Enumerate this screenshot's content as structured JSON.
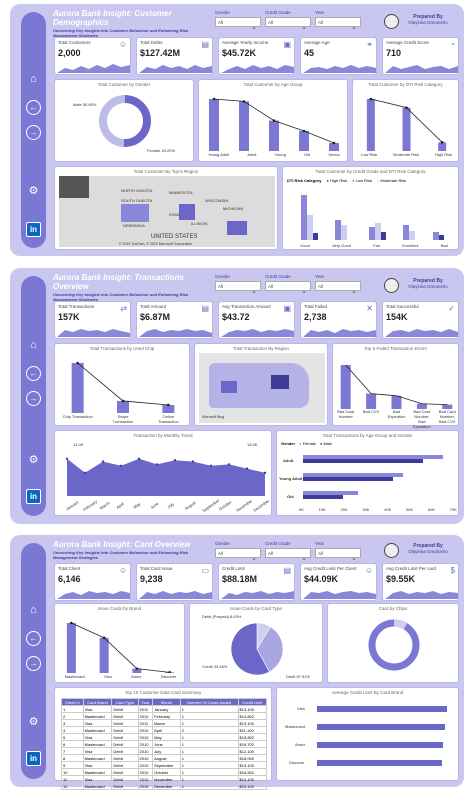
{
  "panel1": {
    "title": "Aurora Bank Insight: Customer Demographics",
    "subtitle": "Uncovering Key Insights into Customer Behaviour and Enhancing Risk Management Strategies",
    "slicers": [
      {
        "label": "Gender",
        "value": "All"
      },
      {
        "label": "Credit Grade",
        "value": "All"
      },
      {
        "label": "Year",
        "value": "All"
      }
    ],
    "prepared_by": "Prepared By",
    "author": "Olayinka Omotosho",
    "kpis": [
      {
        "label": "Total Customers",
        "value": "2,000"
      },
      {
        "label": "Total Debts",
        "value": "$127.42M"
      },
      {
        "label": "Average Yearly Income",
        "value": "$45.72K"
      },
      {
        "label": "Average Age",
        "value": "45"
      },
      {
        "label": "Average Credit Score",
        "value": "710"
      }
    ],
    "donut_title": "Total Customer by Gender",
    "donut_labels": [
      "Male 50.80%",
      "Female 49.20%"
    ],
    "age_title": "Total Customer by Age Group",
    "age_cats": [
      "Young Adult",
      "Adult",
      "Young",
      "Old",
      "Senior"
    ],
    "risk_title": "Total Customer by DTI Risk Category",
    "risk_cats": [
      "Low Risk",
      "Moderate Risk",
      "High Risk"
    ],
    "map_title": "Total Customer By Top 5 Region",
    "map_credit": "© 2023 TomTom, © 2023 Microsoft Corporation",
    "map_labels": [
      "UNITED STATES",
      "NORTH DAKOTA",
      "SOUTH DAKOTA",
      "NEBRASKA",
      "MINNESOTA",
      "IOWA",
      "WISCONSIN",
      "MICHIGAN",
      "ILLINOIS"
    ],
    "grade_title": "Total Customer by Credit Grade and DTI Risk Category",
    "grade_legend": [
      "DTI Risk Category",
      "High Risk",
      "Low Risk",
      "Moderate Risk"
    ],
    "grade_cats": [
      "Good",
      "Very Good",
      "Fair",
      "Excellent",
      "Bad"
    ]
  },
  "panel2": {
    "title": "Aurora Bank Insight: Transactions Overview",
    "subtitle": "Uncovering Key Insights into Customer Behaviour and Enhancing Risk Management Strategies",
    "slicers": [
      {
        "label": "Gender",
        "value": "All"
      },
      {
        "label": "Credit Grade",
        "value": "All"
      },
      {
        "label": "Year",
        "value": "All"
      }
    ],
    "prepared_by": "Prepared By",
    "author": "Olayinka Omotosho",
    "kpis": [
      {
        "label": "Total Transactions",
        "value": "157K"
      },
      {
        "label": "Total Amount",
        "value": "$6.87M"
      },
      {
        "label": "Avg Transaction Amount",
        "value": "$43.72"
      },
      {
        "label": "Total Failed",
        "value": "2,738"
      },
      {
        "label": "Total Successful",
        "value": "154K"
      }
    ],
    "chip_title": "Total Transactions by Used Chip",
    "chip_cats": [
      "Chip Transaction",
      "Swipe Transaction",
      "Online Transaction"
    ],
    "chip_labels": [
      "112K",
      "27K",
      "18K"
    ],
    "map_title": "Total Transaction By Region",
    "map_credit": "Microsoft Bing",
    "err_title": "Top 5 Failed Transaction Errors",
    "err_cats": [
      "Bad Card Number",
      "Bad CVV",
      "Bad Expiration",
      "Bad Card Number, Bad Expiration",
      "Bad Card Number, Bad CVV"
    ],
    "month_title": "Transaction by Monthly Trend",
    "months": [
      "January",
      "February",
      "March",
      "April",
      "May",
      "June",
      "July",
      "August",
      "September",
      "October",
      "November",
      "December"
    ],
    "month_labels": [
      "14.0K",
      "13.0K"
    ],
    "ag_title": "Total Transactions by Age Group and Gender",
    "ag_legend": [
      "Gender",
      "Female",
      "Male"
    ],
    "ag_cats": [
      "Adult",
      "Young Adult",
      "Old"
    ],
    "ag_ticks": [
      "0K",
      "10K",
      "20K",
      "30K",
      "40K",
      "50K",
      "60K",
      "70K"
    ]
  },
  "panel3": {
    "title": "Aurora Bank Insight: Card Overview",
    "subtitle": "Uncovering Key Insights into Customer Behaviour and Enhancing Risk Management Strategies",
    "slicers": [
      {
        "label": "Gender",
        "value": "All"
      },
      {
        "label": "Credit Grade",
        "value": "All"
      },
      {
        "label": "Year",
        "value": "All"
      }
    ],
    "prepared_by": "Prepared By",
    "author": "Olayinka Omotosho",
    "kpis": [
      {
        "label": "Total Client",
        "value": "6,146"
      },
      {
        "label": "Total Card Issue",
        "value": "9,238"
      },
      {
        "label": "Credit Limit",
        "value": "$88.18M"
      },
      {
        "label": "Avg Credit Limit Per Client",
        "value": "$44.09K"
      },
      {
        "label": "Avg Credit Limit Per card",
        "value": "$9.55K"
      }
    ],
    "brand_title": "Issue Cards by Brand",
    "brand_cats": [
      "Mastercard",
      "Visa",
      "Amex",
      "Discover"
    ],
    "type_title": "Issue Cards by Card Type",
    "type_labels": [
      "Debit (Prepaid) 8.63%",
      "Credit 33.46%",
      "Debit 57.91%"
    ],
    "chip_title": "Card by Chips",
    "table_title": "Top 10 Customer Data Card Summary",
    "table_headers": [
      "Client Id",
      "Card Brand",
      "Card Type",
      "Year",
      "Month",
      "Number Of Cards Issued",
      "Credit Limit"
    ],
    "table_rows": [
      [
        "1",
        "Visa",
        "Debit",
        "2011",
        "January",
        "1",
        "$13,100"
      ],
      [
        "2",
        "Mastercard",
        "Debit",
        "2010",
        "February",
        "1",
        "$14,802"
      ],
      [
        "3",
        "Visa",
        "Debit",
        "2011",
        "March",
        "1",
        "$13,100"
      ],
      [
        "4",
        "Mastercard",
        "Debit",
        "2010",
        "April",
        "2",
        "$11,100"
      ],
      [
        "5",
        "Visa",
        "Debit",
        "2010",
        "May",
        "1",
        "$15,802"
      ],
      [
        "6",
        "Mastercard",
        "Debit",
        "2010",
        "June",
        "1",
        "$19,702"
      ],
      [
        "7",
        "Visa",
        "Debit",
        "2010",
        "July",
        "1",
        "$12,100"
      ],
      [
        "8",
        "Mastercard",
        "Debit",
        "2010",
        "August",
        "1",
        "$18,000"
      ],
      [
        "9",
        "Visa",
        "Debit",
        "2010",
        "September",
        "1",
        "$13,100"
      ],
      [
        "10",
        "Mastercard",
        "Debit",
        "2010",
        "October",
        "1",
        "$16,501"
      ],
      [
        "11",
        "Visa",
        "Debit",
        "2010",
        "November",
        "1",
        "$10,100"
      ],
      [
        "12",
        "Mastercard",
        "Debit",
        "2010",
        "December",
        "1",
        "$10,100"
      ]
    ],
    "avg_title": "Average Credit Limit By Card Brand",
    "avg_cats": [
      "Visa",
      "Mastercard",
      "Amex",
      "Discover"
    ]
  },
  "nav": {
    "home": "⌂",
    "back": "←",
    "forward": "→",
    "settings": "⚙",
    "linkedin": "in"
  },
  "chart_data": [
    {
      "type": "bar",
      "title": "Total Customer by Age Group",
      "categories": [
        "Young Adult",
        "Adult",
        "Young",
        "Old",
        "Senior"
      ],
      "values": [
        650,
        620,
        380,
        250,
        100
      ]
    },
    {
      "type": "bar",
      "title": "Total Customer by DTI Risk Category",
      "categories": [
        "Low Risk",
        "Moderate Risk",
        "High Risk"
      ],
      "values": [
        900,
        750,
        150
      ]
    },
    {
      "type": "bar",
      "title": "Total Transactions by Used Chip",
      "categories": [
        "Chip Transaction",
        "Swipe Transaction",
        "Online Transaction"
      ],
      "values": [
        112,
        27,
        18
      ]
    },
    {
      "type": "line",
      "title": "Transaction by Monthly Trend",
      "categories": [
        "January",
        "February",
        "March",
        "April",
        "May",
        "June",
        "July",
        "August",
        "September",
        "October",
        "November",
        "December"
      ],
      "values": [
        14.0,
        13.0,
        13.8,
        13.5,
        14.0,
        13.6,
        13.9,
        13.8,
        13.5,
        13.6,
        13.3,
        13.0
      ]
    },
    {
      "type": "bar",
      "title": "Issue Cards by Brand",
      "categories": [
        "Mastercard",
        "Visa",
        "Amex",
        "Discover"
      ],
      "values": [
        4900,
        3500,
        600,
        250
      ]
    },
    {
      "type": "pie",
      "title": "Issue Cards by Card Type",
      "categories": [
        "Debit (Prepaid)",
        "Credit",
        "Debit"
      ],
      "values": [
        8.63,
        33.46,
        57.91
      ]
    }
  ]
}
